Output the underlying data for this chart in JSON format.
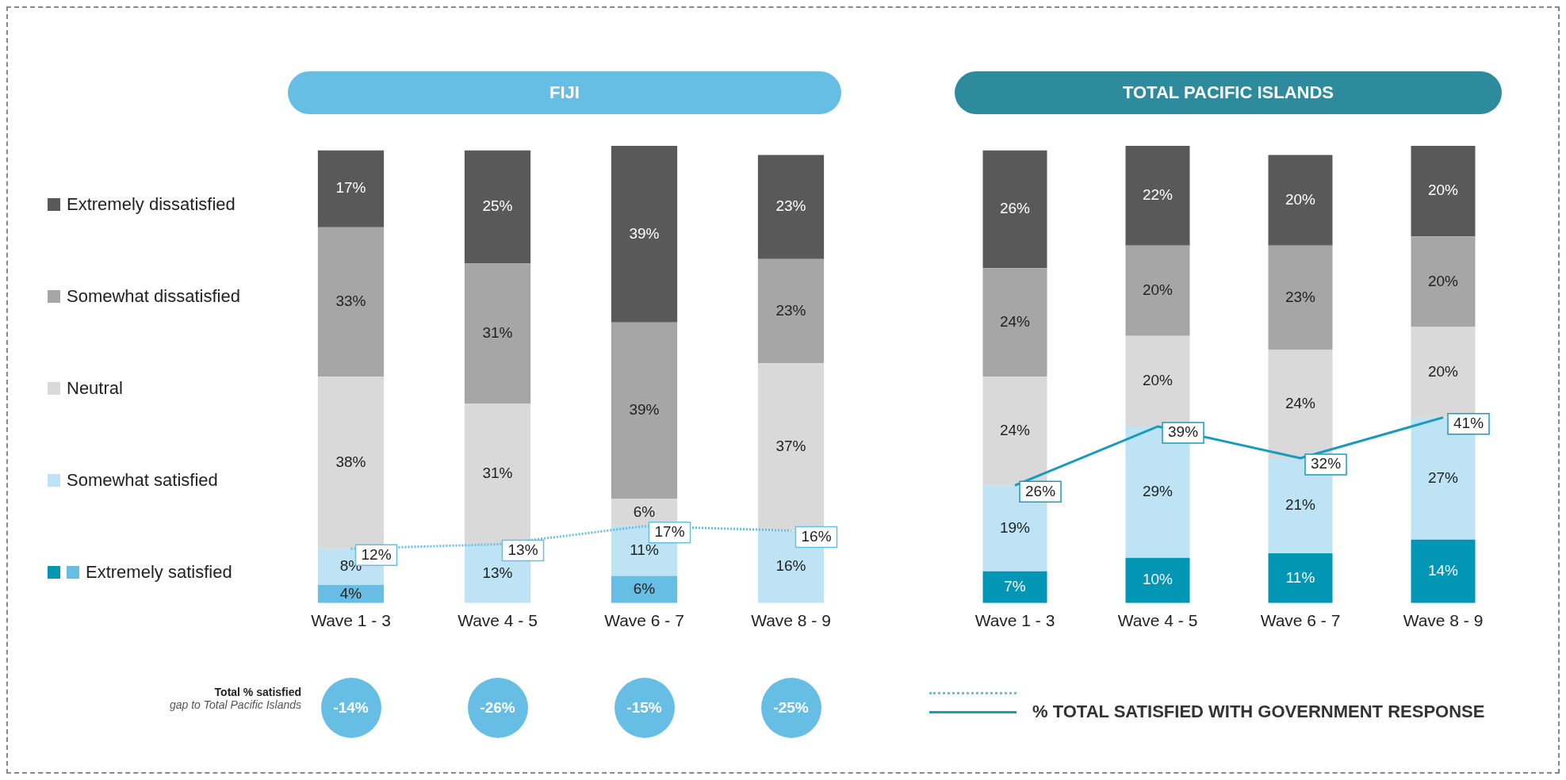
{
  "chart_data": [
    {
      "type": "bar",
      "title": "FIJI",
      "stacked": true,
      "legend": "left",
      "categories": [
        "Wave 1 - 3",
        "Wave 4 - 5",
        "Wave 6 - 7",
        "Wave 8 - 9"
      ],
      "series": [
        {
          "name": "Extremely satisfied",
          "color": "#67bee5",
          "values": [
            4,
            null,
            6,
            null
          ],
          "value_labels": [
            "4%",
            null,
            "6%",
            null
          ]
        },
        {
          "name": "Somewhat satisfied",
          "color": "#bde3f4",
          "values": [
            8,
            13,
            11,
            16
          ],
          "value_labels": [
            "8%",
            "13%",
            "11%",
            "16%"
          ]
        },
        {
          "name": "Neutral",
          "color": "#d9d9d9",
          "values": [
            38,
            31,
            6,
            37
          ],
          "value_labels": [
            "38%",
            "31%",
            "6%",
            "37%"
          ]
        },
        {
          "name": "Somewhat dissatisfied",
          "color": "#a6a6a6",
          "values": [
            33,
            31,
            39,
            23
          ],
          "value_labels": [
            "33%",
            "31%",
            "39%",
            "23%"
          ]
        },
        {
          "name": "Extremely dissatisfied",
          "color": "#595959",
          "values": [
            17,
            25,
            39,
            23
          ],
          "value_labels": [
            "17%",
            "25%",
            "39%",
            "23%"
          ]
        },
        {
          "type": "line",
          "color": "#67bee5",
          "line_style": "dotted",
          "marker": "none",
          "values": [
            12,
            13,
            17,
            16
          ],
          "value_labels": [
            "12%",
            "13%",
            "17%",
            "16%"
          ]
        }
      ],
      "annotations": [
        "Total % satisfied",
        "gap to Total Pacific Islands",
        "-14%",
        "-26%",
        "-15%",
        "-25%"
      ]
    },
    {
      "type": "bar",
      "title": "TOTAL PACIFIC ISLANDS",
      "stacked": true,
      "legend": "bottom right",
      "categories": [
        "Wave 1 - 3",
        "Wave 4 - 5",
        "Wave 6 - 7",
        "Wave 8 - 9"
      ],
      "series": [
        {
          "color": "#0096b4",
          "values": [
            7,
            10,
            11,
            14
          ],
          "value_labels": [
            "7%",
            "10%",
            "11%",
            "14%"
          ]
        },
        {
          "color": "#bde3f4",
          "values": [
            19,
            29,
            21,
            27
          ],
          "value_labels": [
            "19%",
            "29%",
            "21%",
            "27%"
          ]
        },
        {
          "color": "#d9d9d9",
          "values": [
            24,
            20,
            24,
            20
          ],
          "value_labels": [
            "24%",
            "20%",
            "24%",
            "20%"
          ]
        },
        {
          "color": "#a6a6a6",
          "values": [
            24,
            20,
            23,
            20
          ],
          "value_labels": [
            "24%",
            "20%",
            "23%",
            "20%"
          ]
        },
        {
          "color": "#595959",
          "values": [
            26,
            22,
            20,
            20
          ],
          "value_labels": [
            "26%",
            "22%",
            "20%",
            "20%"
          ]
        },
        {
          "type": "line",
          "name": "% TOTAL SATISFIED WITH GOVERNMENT RESPONSE",
          "color": "#1a9bbd",
          "line_style": "solid",
          "marker": "none",
          "values": [
            26,
            39,
            32,
            41
          ],
          "value_labels": [
            "26%",
            "39%",
            "32%",
            "41%"
          ]
        }
      ]
    }
  ]
}
